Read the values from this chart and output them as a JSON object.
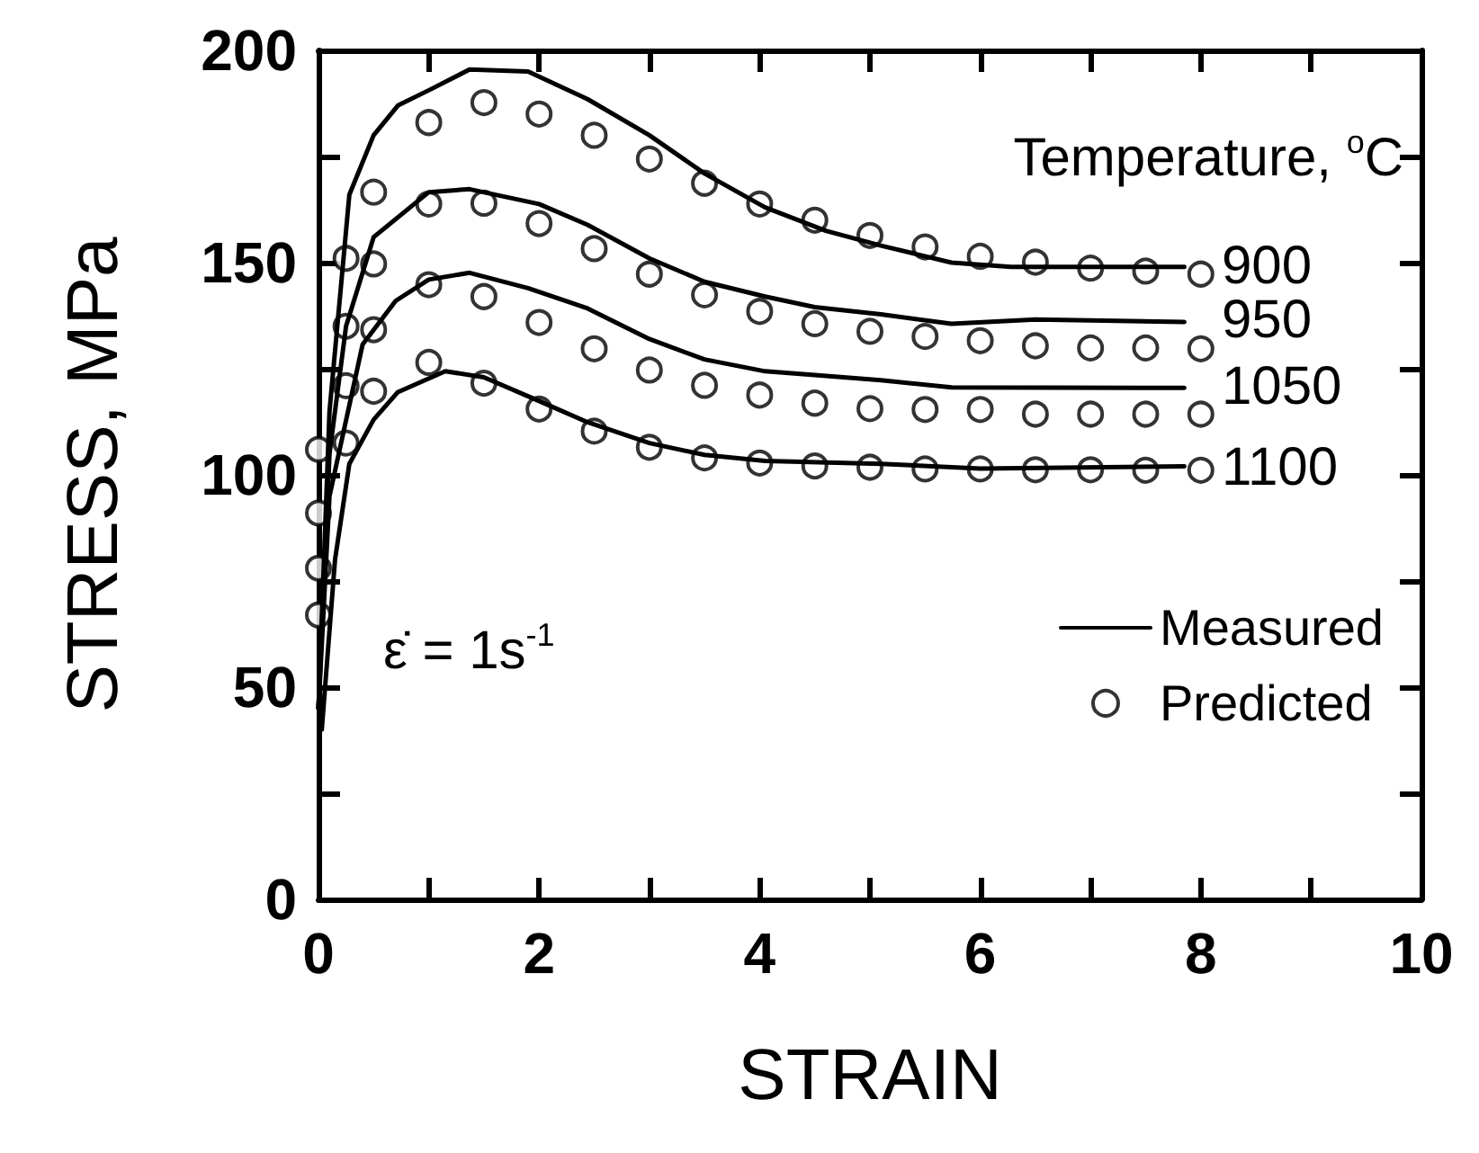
{
  "chart_data": {
    "type": "line",
    "xlabel": "STRAIN",
    "ylabel": "STRESS, MPa",
    "xlim": [
      0,
      10
    ],
    "ylim": [
      0,
      200
    ],
    "xticks": [
      0,
      {
        "value": 1,
        "label": null
      },
      2,
      {
        "value": 3,
        "label": null
      },
      4,
      {
        "value": 5,
        "label": null
      },
      6,
      {
        "value": 7,
        "label": null
      },
      8,
      {
        "value": 9,
        "label": null
      },
      10
    ],
    "yticks": [
      0,
      {
        "value": 25,
        "label": null
      },
      50,
      {
        "value": 75,
        "label": null
      },
      100,
      {
        "value": 125,
        "label": null
      },
      150,
      {
        "value": 175,
        "label": null
      },
      200
    ],
    "grid": false,
    "legend": "right",
    "annotations": [
      "Temperature, $^{o}$C",
      "ε̇ = 1s$^{-1}$",
      "900",
      "950",
      "1050",
      "1100"
    ],
    "series": [
      {
        "name": "Measured",
        "color": "#000000",
        "x": [
          0,
          0.1,
          0.28,
          0.5,
          0.72,
          1,
          1.37,
          1.9,
          2.44,
          3,
          3.5,
          4.05,
          4.6,
          5.1,
          5.74,
          6.28,
          7,
          7.85
        ],
        "values": [
          45,
          115,
          166,
          180,
          187,
          190.6,
          195.5,
          195,
          188.5,
          180,
          171,
          163,
          157.5,
          154,
          150,
          149,
          149,
          149
        ]
      },
      {
        "color": "#000000",
        "x": [
          0,
          0.1,
          0.25,
          0.5,
          1,
          1.37,
          2,
          2.44,
          3,
          3.5,
          4.05,
          4.5,
          5.1,
          5.74,
          6.5,
          7.85
        ],
        "values": [
          45,
          105,
          135,
          156,
          166.6,
          167.3,
          163.8,
          158.9,
          151,
          145.5,
          142,
          139.5,
          137.8,
          135.6,
          136.6,
          136
        ]
      },
      {
        "color": "#000000",
        "x": [
          0,
          0.1,
          0.4,
          0.7,
          1,
          1.37,
          1.9,
          2.44,
          3,
          3.5,
          4.05,
          4.5,
          5.1,
          5.74,
          7.85
        ],
        "values": [
          45,
          95,
          130.7,
          141,
          146,
          147.6,
          144,
          139.2,
          132,
          127.2,
          124.4,
          123.5,
          122.3,
          120.6,
          120.5
        ]
      },
      {
        "color": "#000000",
        "x": [
          0.03,
          0.15,
          0.28,
          0.5,
          0.72,
          1.15,
          1.5,
          2,
          2.44,
          3,
          3.5,
          4.05,
          5.1,
          6,
          7.85
        ],
        "values": [
          40,
          80,
          102.6,
          113,
          119.5,
          124.4,
          123,
          117.4,
          112.4,
          107.5,
          104.7,
          103.3,
          102.6,
          101.5,
          102
        ]
      },
      {
        "name": "Predicted",
        "type": "scatter",
        "marker": "circle",
        "color": "#000000",
        "x": [
          0,
          0.25,
          0.5,
          1,
          1.5,
          2,
          2.5,
          3,
          3.5,
          4,
          4.5,
          5,
          5.5,
          6,
          6.5,
          7,
          7.5,
          8
        ],
        "values": [
          106,
          151,
          166.6,
          183,
          187.7,
          185,
          180,
          174.4,
          168.7,
          163.8,
          160,
          156.4,
          153.7,
          151.5,
          150.1,
          148.7,
          148,
          147.3
        ]
      },
      {
        "type": "scatter",
        "marker": "circle",
        "color": "#000000",
        "x": [
          0,
          0.25,
          0.5,
          1,
          1.5,
          2,
          2.5,
          3,
          3.5,
          4,
          4.5,
          5,
          5.5,
          6,
          6.5,
          7,
          7.5,
          8
        ],
        "values": [
          91,
          135,
          149.7,
          163.8,
          164,
          159.2,
          153.3,
          147.3,
          142.4,
          138.5,
          135.6,
          133.8,
          132.6,
          131.6,
          130.4,
          129.9,
          129.9,
          129.7
        ]
      },
      {
        "type": "scatter",
        "marker": "circle",
        "color": "#000000",
        "x": [
          0,
          0.25,
          0.5,
          1,
          1.5,
          2,
          2.5,
          3,
          3.5,
          4,
          4.5,
          5,
          5.5,
          6,
          6.5,
          7,
          7.5,
          8
        ],
        "values": [
          78,
          121,
          134.2,
          144.8,
          142,
          135.9,
          129.7,
          124.7,
          121.1,
          118.8,
          116.9,
          115.6,
          115.4,
          115.4,
          114.3,
          114.3,
          114.3,
          114.3
        ]
      },
      {
        "type": "scatter",
        "marker": "circle",
        "color": "#000000",
        "x": [
          0,
          0.25,
          0.5,
          1,
          1.5,
          2,
          2.5,
          3,
          3.5,
          4,
          4.5,
          5,
          5.5,
          6,
          6.5,
          7,
          7.5,
          8
        ],
        "values": [
          67,
          107.5,
          119.7,
          126.5,
          121.6,
          115.5,
          110.3,
          106.5,
          104,
          102.8,
          102.1,
          101.8,
          101.4,
          101.4,
          101.2,
          101.2,
          101.1,
          101.1
        ]
      }
    ]
  }
}
